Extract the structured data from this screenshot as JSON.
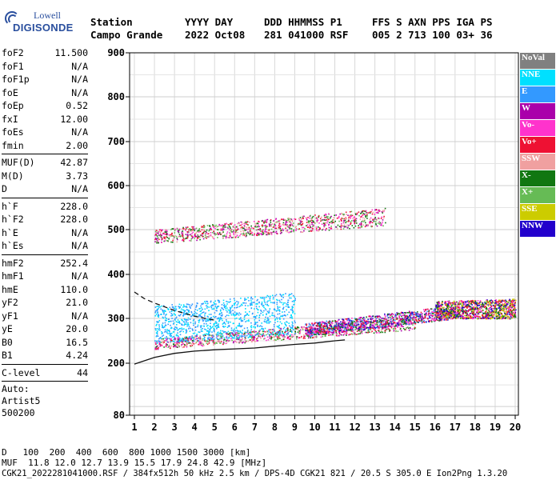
{
  "logo": {
    "line1": "Lowell",
    "line2": "DIGISONDE"
  },
  "header": {
    "row1": [
      "Station",
      "YYYY DAY",
      "DDD HHMMSS P1",
      "FFS S AXN PPS IGA PS"
    ],
    "row2": [
      "Campo Grande",
      "2022 Oct08",
      "281 041000 RSF",
      "005 2 713 100 03+ 36"
    ]
  },
  "params": [
    {
      "name": "foF2",
      "value": "11.500"
    },
    {
      "name": "foF1",
      "value": "N/A"
    },
    {
      "name": "foF1p",
      "value": "N/A"
    },
    {
      "name": "foE",
      "value": "N/A"
    },
    {
      "name": "foEp",
      "value": "0.52"
    },
    {
      "name": "fxI",
      "value": "12.00"
    },
    {
      "name": "foEs",
      "value": "N/A"
    },
    {
      "name": "fmin",
      "value": "2.00"
    },
    {
      "sep": true
    },
    {
      "name": "MUF(D)",
      "value": "42.87"
    },
    {
      "name": "M(D)",
      "value": "3.73"
    },
    {
      "name": "D",
      "value": "N/A"
    },
    {
      "sep": true
    },
    {
      "name": "h`F",
      "value": "228.0"
    },
    {
      "name": "h`F2",
      "value": "228.0"
    },
    {
      "name": "h`E",
      "value": "N/A"
    },
    {
      "name": "h`Es",
      "value": "N/A"
    },
    {
      "sep": true
    },
    {
      "name": "hmF2",
      "value": "252.4"
    },
    {
      "name": "hmF1",
      "value": "N/A"
    },
    {
      "name": "hmE",
      "value": "110.0"
    },
    {
      "name": "yF2",
      "value": "21.0"
    },
    {
      "name": "yF1",
      "value": "N/A"
    },
    {
      "name": "yE",
      "value": "20.0"
    },
    {
      "name": "B0",
      "value": "16.5"
    },
    {
      "name": "B1",
      "value": "4.24"
    },
    {
      "sep": true
    },
    {
      "name": "C-level",
      "value": "44"
    },
    {
      "sep": true
    },
    {
      "text": "Auto:"
    },
    {
      "text": "Artist5"
    },
    {
      "text": "500200"
    }
  ],
  "legend": [
    {
      "label": "NoVal",
      "color": "#808080"
    },
    {
      "label": "NNE",
      "color": "#00e0ff"
    },
    {
      "label": "E",
      "color": "#3399ff"
    },
    {
      "label": "W",
      "color": "#aa00aa"
    },
    {
      "label": "Vo-",
      "color": "#ff33cc"
    },
    {
      "label": "Vo+",
      "color": "#ee1133"
    },
    {
      "label": "SSW",
      "color": "#f0a0a0"
    },
    {
      "label": "X-",
      "color": "#117711"
    },
    {
      "label": "X+",
      "color": "#66bb55"
    },
    {
      "label": "SSE",
      "color": "#cccc00"
    },
    {
      "label": "NNW",
      "color": "#2200cc"
    }
  ],
  "chart_data": {
    "type": "scatter",
    "xlim": [
      1,
      20
    ],
    "ylim": [
      80,
      900
    ],
    "x_ticks": [
      "1",
      "2",
      "3",
      "4",
      "5",
      "6",
      "7",
      "8",
      "9",
      "10",
      "11",
      "12",
      "13",
      "14",
      "15",
      "16",
      "17",
      "18",
      "19",
      "20"
    ],
    "y_ticks": [
      "80",
      "200",
      "300",
      "400",
      "500",
      "600",
      "700",
      "800",
      "900"
    ],
    "trace_solid": [
      [
        1,
        198
      ],
      [
        2,
        213
      ],
      [
        3,
        222
      ],
      [
        4,
        227
      ],
      [
        5,
        230
      ],
      [
        6,
        232
      ],
      [
        7,
        234
      ],
      [
        8,
        238
      ],
      [
        9,
        242
      ],
      [
        10,
        245
      ],
      [
        11,
        250
      ],
      [
        11.5,
        252
      ]
    ],
    "trace_dashed": [
      [
        1,
        360
      ],
      [
        1.5,
        345
      ],
      [
        2,
        335
      ],
      [
        3,
        318
      ],
      [
        4,
        305
      ],
      [
        5,
        296
      ]
    ],
    "clusters": [
      {
        "name": "F2 one-hop trace",
        "x": [
          2,
          15
        ],
        "y": [
          232,
          255
        ],
        "y_end": [
          275,
          305
        ],
        "colors": [
          "#ff33cc",
          "#ee1133",
          "#aa00aa",
          "#117711",
          "#66bb55",
          "#f0a0a0"
        ]
      },
      {
        "name": "F2 upper trace",
        "x": [
          9.5,
          17
        ],
        "y": [
          260,
          290
        ],
        "y_end": [
          300,
          330
        ],
        "colors": [
          "#ff33cc",
          "#ee1133",
          "#aa00aa",
          "#3399ff",
          "#117711",
          "#2200cc"
        ]
      },
      {
        "name": "spread F (east)",
        "x": [
          2,
          9
        ],
        "y": [
          245,
          330
        ],
        "y_end": [
          265,
          360
        ],
        "colors": [
          "#00e0ff",
          "#3399ff"
        ]
      },
      {
        "name": "second hop",
        "x": [
          2,
          13.5
        ],
        "y": [
          470,
          500
        ],
        "y_end": [
          510,
          550
        ],
        "colors": [
          "#ff33cc",
          "#ee1133",
          "#aa00aa",
          "#66bb55",
          "#117711",
          "#f0a0a0"
        ]
      },
      {
        "name": "far points",
        "x": [
          16,
          20
        ],
        "y": [
          300,
          340
        ],
        "y_end": [
          300,
          345
        ],
        "colors": [
          "#ee1133",
          "#2200cc",
          "#117711",
          "#ff33cc",
          "#cccc00"
        ]
      }
    ]
  },
  "bottom": {
    "distance_row": [
      "D",
      "100",
      "200",
      "400",
      "600",
      "800",
      "1000",
      "1500",
      "3000",
      "[km]"
    ],
    "muf_row": [
      "MUF",
      "11.8",
      "12.0",
      "12.7",
      "13.9",
      "15.5",
      "17.9",
      "24.8",
      "42.9",
      "[MHz]"
    ],
    "footer": "CGK21_2022281041000.RSF / 384fx512h 50 kHz 2.5 km / DPS-4D CGK21 821 / 20.5 S 305.0 E Ion2Png 1.3.20"
  }
}
